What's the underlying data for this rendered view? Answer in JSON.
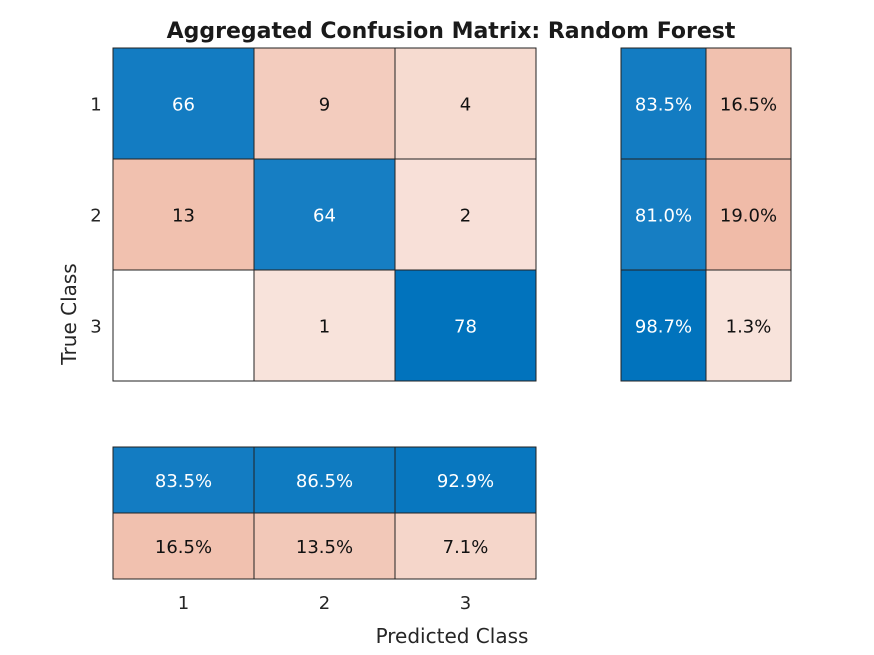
{
  "chart_data": {
    "type": "heatmap",
    "title": "Aggregated Confusion Matrix: Random Forest",
    "xlabel": "Predicted Class",
    "ylabel": "True Class",
    "classes": [
      "1",
      "2",
      "3"
    ],
    "matrix": [
      [
        66,
        9,
        4
      ],
      [
        13,
        64,
        2
      ],
      [
        0,
        1,
        78
      ]
    ],
    "row_summary": [
      [
        "83.5%",
        "16.5%"
      ],
      [
        "81.0%",
        "19.0%"
      ],
      [
        "98.7%",
        "1.3%"
      ]
    ],
    "column_summary": [
      [
        "83.5%",
        "86.5%",
        "92.9%"
      ],
      [
        "16.5%",
        "13.5%",
        "7.1%"
      ]
    ],
    "colors": {
      "positive_dark": "#0072bd",
      "negative_light": "#f9e6df",
      "negative_dark": "#efb9a5",
      "zero_cell": "#ffffff",
      "text_dark": "#111111",
      "text_light": "#ffffff"
    }
  }
}
